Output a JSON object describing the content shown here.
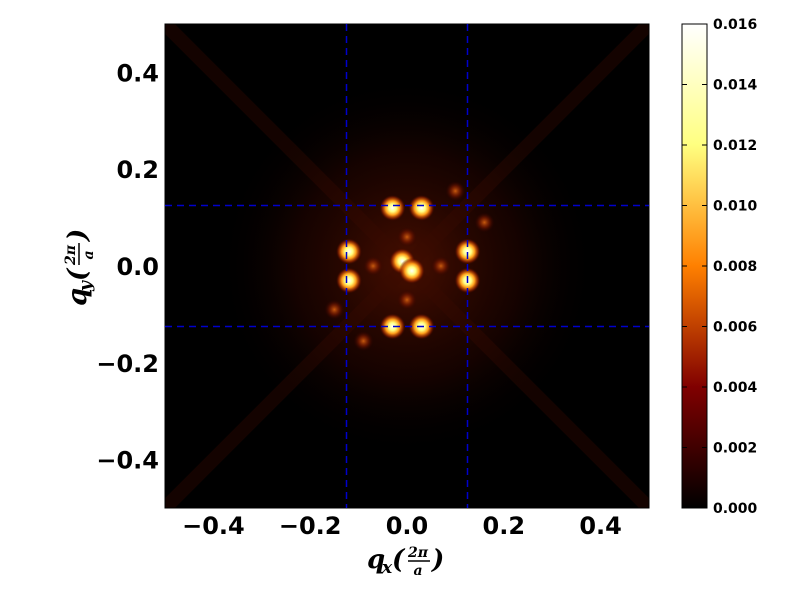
{
  "chart_data": {
    "type": "heatmap",
    "title": "",
    "colormap": "afmhot",
    "xlabel": {
      "var": "q",
      "sub": "x",
      "num": "2π",
      "den": "a"
    },
    "ylabel": {
      "var": "q",
      "sub": "y",
      "num": "2π",
      "den": "a"
    },
    "xlim": [
      -0.5,
      0.5
    ],
    "ylim": [
      -0.5,
      0.5
    ],
    "x_ticks": [
      -0.4,
      -0.2,
      0.0,
      0.2,
      0.4
    ],
    "y_ticks": [
      0.4,
      0.2,
      0.0,
      -0.2,
      -0.4
    ],
    "x_tick_labels": [
      "−0.4",
      "−0.2",
      "0.0",
      "0.2",
      "0.4"
    ],
    "y_tick_labels": [
      "0.4",
      "0.2",
      "0.0",
      "−0.2",
      "−0.4"
    ],
    "colorbar": {
      "min": 0.0,
      "max": 0.016,
      "ticks": [
        0.0,
        0.002,
        0.004,
        0.006,
        0.008,
        0.01,
        0.012,
        0.014,
        0.016
      ],
      "tick_labels": [
        "0.000",
        "0.002",
        "0.004",
        "0.006",
        "0.008",
        "0.010",
        "0.012",
        "0.014",
        "0.016"
      ]
    },
    "guide_lines": {
      "color": "#0000cc",
      "style": "dashed",
      "vertical_x": [
        -0.125,
        0.125
      ],
      "horizontal_y": [
        0.125,
        -0.125
      ]
    },
    "peaks": [
      {
        "x": -0.03,
        "y": 0.12,
        "value": 0.016
      },
      {
        "x": 0.03,
        "y": 0.12,
        "value": 0.016
      },
      {
        "x": -0.03,
        "y": -0.125,
        "value": 0.016
      },
      {
        "x": 0.03,
        "y": -0.125,
        "value": 0.016
      },
      {
        "x": -0.12,
        "y": 0.03,
        "value": 0.016
      },
      {
        "x": -0.12,
        "y": -0.03,
        "value": 0.016
      },
      {
        "x": 0.125,
        "y": 0.03,
        "value": 0.016
      },
      {
        "x": 0.125,
        "y": -0.03,
        "value": 0.016
      },
      {
        "x": -0.01,
        "y": 0.01,
        "value": 0.016
      },
      {
        "x": 0.01,
        "y": -0.01,
        "value": 0.016
      },
      {
        "x": 0.1,
        "y": 0.155,
        "value": 0.005
      },
      {
        "x": 0.16,
        "y": 0.09,
        "value": 0.005
      },
      {
        "x": -0.15,
        "y": -0.09,
        "value": 0.005
      },
      {
        "x": -0.09,
        "y": -0.155,
        "value": 0.005
      },
      {
        "x": 0.0,
        "y": 0.06,
        "value": 0.004
      },
      {
        "x": 0.0,
        "y": -0.07,
        "value": 0.004
      },
      {
        "x": -0.07,
        "y": 0.0,
        "value": 0.003
      },
      {
        "x": 0.07,
        "y": 0.0,
        "value": 0.003
      }
    ]
  }
}
